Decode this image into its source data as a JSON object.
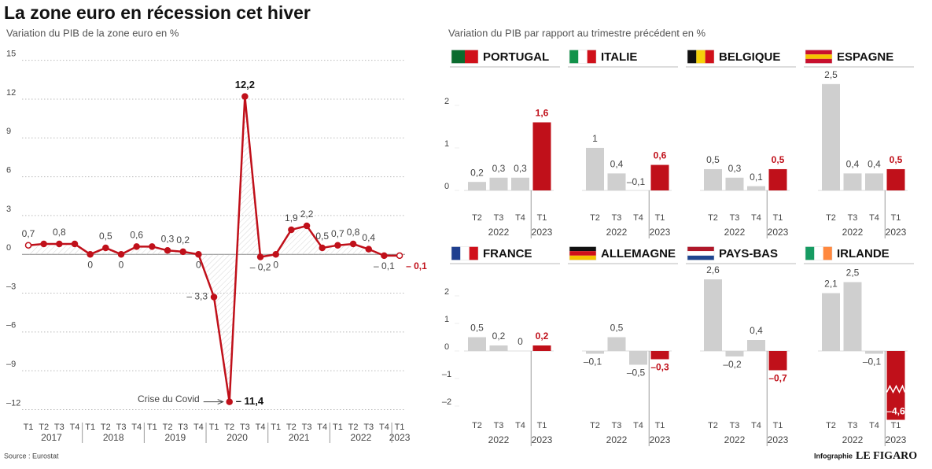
{
  "title": "La zone euro en récession cet hiver",
  "panels_subtitle": "Variation du PIB par rapport au trimestre précédent en %",
  "source": "Source : Eurostat",
  "credit": "Infographie",
  "logo": "LE FIGARO",
  "chart_data": [
    {
      "type": "line",
      "subtitle": "Variation du PIB de la zone euro en %",
      "categories": [
        "T1",
        "T2",
        "T3",
        "T4",
        "T1",
        "T2",
        "T3",
        "T4",
        "T1",
        "T2",
        "T3",
        "T4",
        "T1",
        "T2",
        "T3",
        "T4",
        "T1",
        "T2",
        "T3",
        "T4",
        "T1",
        "T2",
        "T3",
        "T4",
        "T1"
      ],
      "years": [
        "2017",
        "2018",
        "2019",
        "2020",
        "2021",
        "2022",
        "2023"
      ],
      "values": [
        0.7,
        0.8,
        0.8,
        0.8,
        0,
        0.5,
        0,
        0.6,
        0.6,
        0.3,
        0.2,
        0,
        -3.3,
        -11.4,
        12.2,
        -0.2,
        0,
        1.9,
        2.2,
        0.5,
        0.7,
        0.8,
        0.4,
        -0.1,
        -0.1
      ],
      "value_labels": [
        "0,7",
        null,
        "0,8",
        null,
        "0",
        "0,5",
        "0",
        "0,6",
        null,
        "0,3",
        "0,2",
        "0",
        "– 3,3",
        "– 11,4",
        "12,2",
        "– 0,2",
        "0",
        "1,9",
        "2,2",
        "0,5",
        "0,7",
        "0,8",
        "0,4",
        "– 0,1",
        "– 0,1"
      ],
      "color": "#c0101a",
      "ylim": [
        -13,
        16
      ],
      "yticks": [
        15,
        12,
        9,
        6,
        3,
        0,
        {
          "value": -3,
          "label": "–3"
        },
        {
          "value": -6,
          "label": "–6"
        },
        {
          "value": -9,
          "label": "–9"
        },
        {
          "value": -12,
          "label": "–12"
        }
      ],
      "grid": true,
      "annotation": "Crise du Covid"
    },
    {
      "type": "bar",
      "title": "PORTUGAL",
      "flag": [
        "#0b6b2e",
        "#d0101a"
      ],
      "flag_direction": "vertical",
      "categories": [
        "T2",
        "T3",
        "T4",
        "T1"
      ],
      "years": [
        "2022",
        "2023"
      ],
      "values": [
        0.2,
        0.3,
        0.3,
        1.6
      ],
      "value_labels": [
        "0,2",
        "0,3",
        "0,3",
        "1,6"
      ],
      "colors": [
        "#cfcfcf",
        "#cfcfcf",
        "#cfcfcf",
        "#c0101a"
      ],
      "ylim": [
        0,
        2.7
      ],
      "yticks": [
        0,
        1,
        2
      ]
    },
    {
      "type": "bar",
      "title": "ITALIE",
      "flag": [
        "#12924a",
        "#ffffff",
        "#d0101a"
      ],
      "flag_direction": "vertical",
      "categories": [
        "T2",
        "T3",
        "T4",
        "T1"
      ],
      "years": [
        "2022",
        "2023"
      ],
      "values": [
        1,
        0.4,
        -0.1,
        0.6
      ],
      "value_labels": [
        "1",
        "0,4",
        "–0,1",
        "0,6"
      ],
      "colors": [
        "#cfcfcf",
        "#cfcfcf",
        "#cfcfcf",
        "#c0101a"
      ],
      "ylim": [
        0,
        2.7
      ]
    },
    {
      "type": "bar",
      "title": "BELGIQUE",
      "flag": [
        "#111111",
        "#f5d10a",
        "#d0101a"
      ],
      "flag_direction": "vertical",
      "categories": [
        "T2",
        "T3",
        "T4",
        "T1"
      ],
      "years": [
        "2022",
        "2023"
      ],
      "values": [
        0.5,
        0.3,
        0.1,
        0.5
      ],
      "value_labels": [
        "0,5",
        "0,3",
        "0,1",
        "0,5"
      ],
      "colors": [
        "#cfcfcf",
        "#cfcfcf",
        "#cfcfcf",
        "#c0101a"
      ],
      "ylim": [
        0,
        2.7
      ]
    },
    {
      "type": "bar",
      "title": "ESPAGNE",
      "flag": [
        "#c8102e",
        "#f5c400",
        "#c8102e"
      ],
      "flag_direction": "horizontal",
      "categories": [
        "T2",
        "T3",
        "T4",
        "T1"
      ],
      "years": [
        "2022",
        "2023"
      ],
      "values": [
        2.5,
        0.4,
        0.4,
        0.5
      ],
      "value_labels": [
        "2,5",
        "0,4",
        "0,4",
        "0,5"
      ],
      "colors": [
        "#cfcfcf",
        "#cfcfcf",
        "#cfcfcf",
        "#c0101a"
      ],
      "ylim": [
        0,
        2.7
      ]
    },
    {
      "type": "bar",
      "title": "FRANCE",
      "flag": [
        "#1f3f8f",
        "#ffffff",
        "#d0101a"
      ],
      "flag_direction": "vertical",
      "categories": [
        "T2",
        "T3",
        "T4",
        "T1"
      ],
      "years": [
        "2022",
        "2023"
      ],
      "values": [
        0.5,
        0.2,
        0,
        0.2
      ],
      "value_labels": [
        "0,5",
        "0,2",
        "0",
        "0,2"
      ],
      "colors": [
        "#cfcfcf",
        "#cfcfcf",
        "#cfcfcf",
        "#c0101a"
      ],
      "ylim": [
        -2.5,
        2.9
      ],
      "yticks": [
        2,
        1,
        0,
        {
          "value": -1,
          "label": "–1"
        },
        {
          "value": -2,
          "label": "–2"
        }
      ]
    },
    {
      "type": "bar",
      "title": "ALLEMAGNE",
      "flag": [
        "#111111",
        "#d0101a",
        "#f5c400"
      ],
      "flag_direction": "horizontal",
      "categories": [
        "T2",
        "T3",
        "T4",
        "T1"
      ],
      "years": [
        "2022",
        "2023"
      ],
      "values": [
        -0.1,
        0.5,
        -0.5,
        -0.3
      ],
      "value_labels": [
        "–0,1",
        "0,5",
        "–0,5",
        "–0,3"
      ],
      "colors": [
        "#cfcfcf",
        "#cfcfcf",
        "#cfcfcf",
        "#c0101a"
      ],
      "ylim": [
        -2.5,
        2.9
      ]
    },
    {
      "type": "bar",
      "title": "PAYS-BAS",
      "flag": [
        "#b0182a",
        "#ffffff",
        "#1f4690"
      ],
      "flag_direction": "horizontal",
      "categories": [
        "T2",
        "T3",
        "T4",
        "T1"
      ],
      "years": [
        "2022",
        "2023"
      ],
      "values": [
        2.6,
        -0.2,
        0.4,
        -0.7
      ],
      "value_labels": [
        "2,6",
        "–0,2",
        "0,4",
        "–0,7"
      ],
      "colors": [
        "#cfcfcf",
        "#cfcfcf",
        "#cfcfcf",
        "#c0101a"
      ],
      "ylim": [
        -2.5,
        2.9
      ]
    },
    {
      "type": "bar",
      "title": "IRLANDE",
      "flag": [
        "#169b62",
        "#ffffff",
        "#ff883e"
      ],
      "flag_direction": "vertical",
      "categories": [
        "T2",
        "T3",
        "T4",
        "T1"
      ],
      "years": [
        "2022",
        "2023"
      ],
      "values": [
        2.1,
        2.5,
        -0.1,
        -4.6
      ],
      "value_labels": [
        "2,1",
        "2,5",
        "–0,1",
        "–4,6"
      ],
      "colors": [
        "#cfcfcf",
        "#cfcfcf",
        "#cfcfcf",
        "#c0101a"
      ],
      "ylim": [
        -2.5,
        2.9
      ]
    }
  ]
}
